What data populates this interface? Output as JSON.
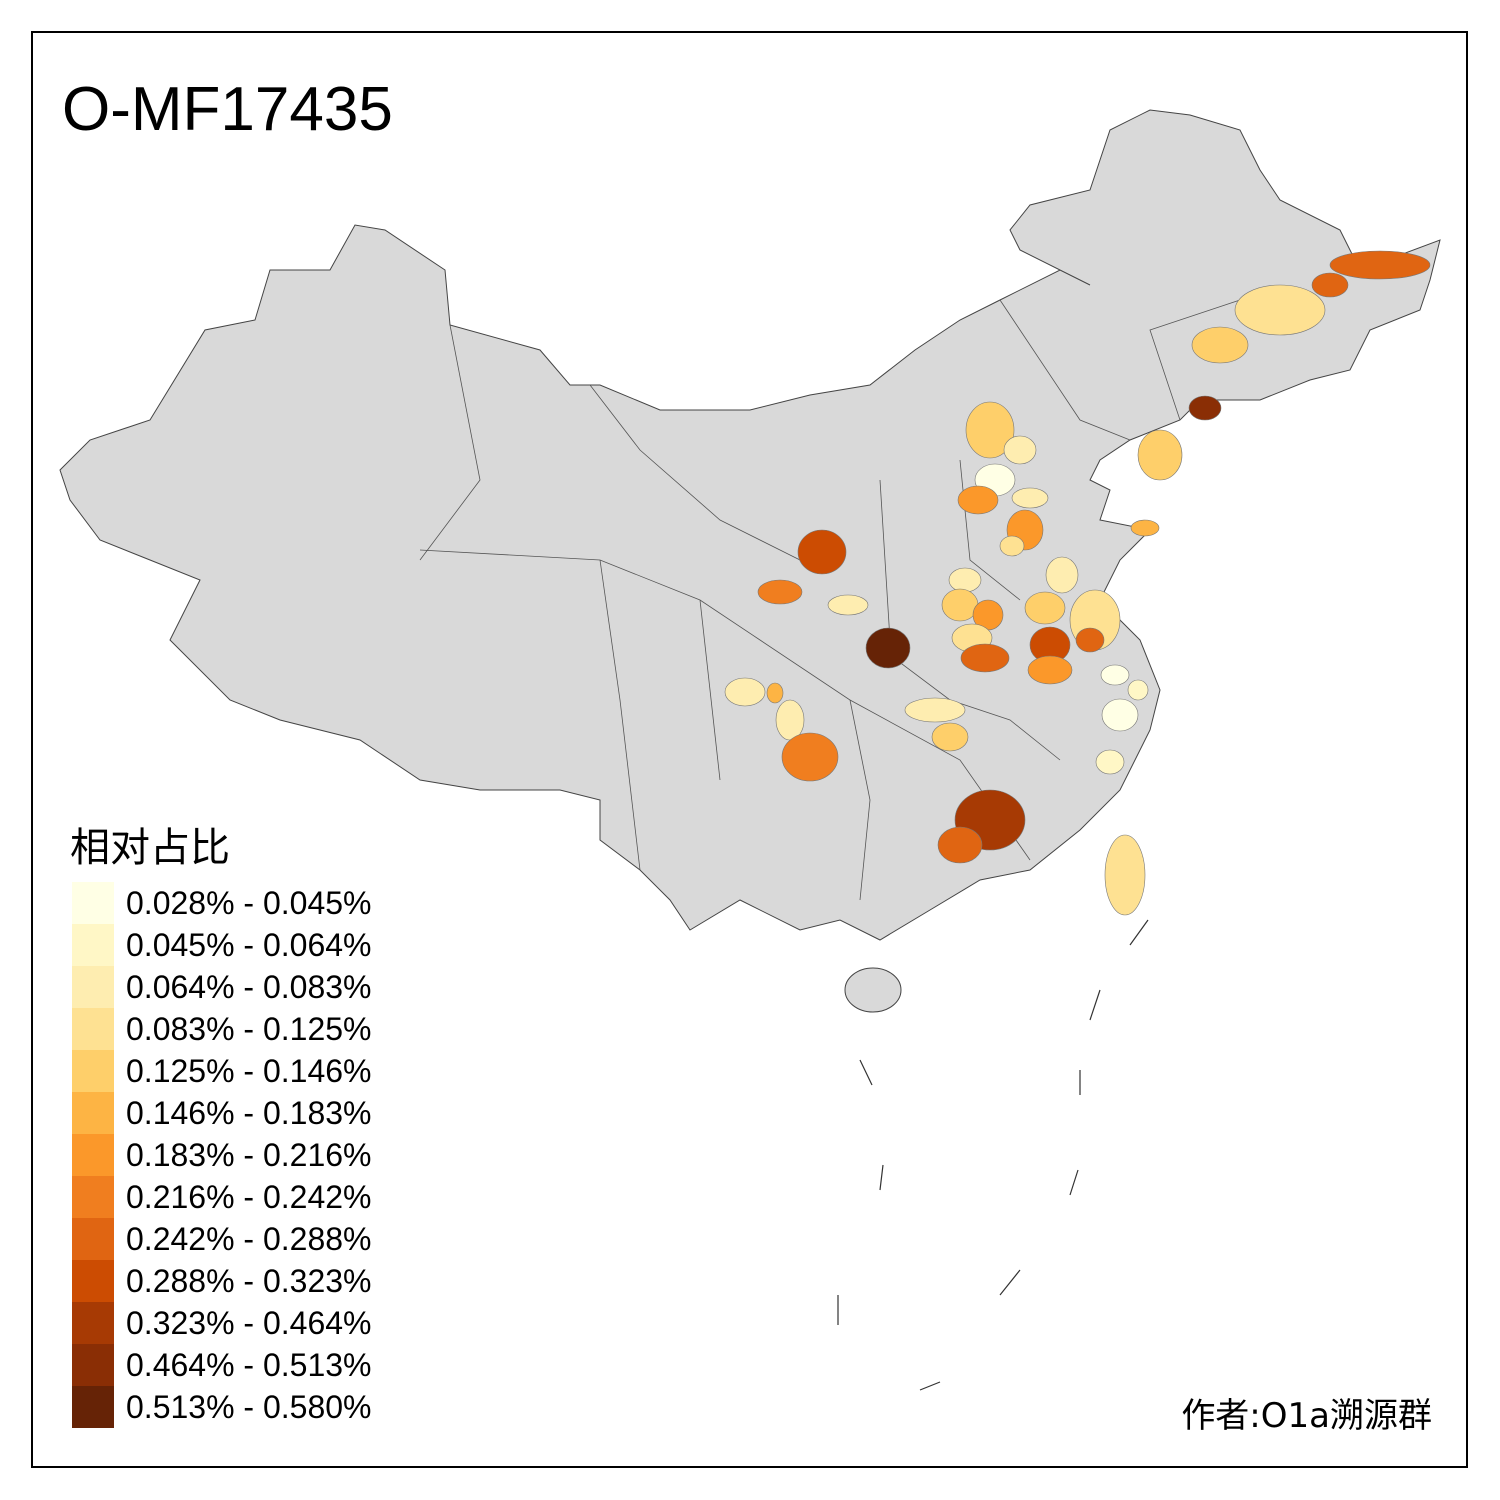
{
  "title": "O-MF17435",
  "legend": {
    "title": "相对占比",
    "items": [
      {
        "label": "0.028% - 0.045%",
        "color": "#FFFFE5"
      },
      {
        "label": "0.045% - 0.064%",
        "color": "#FFF7C6"
      },
      {
        "label": "0.064% - 0.083%",
        "color": "#FEEDB0"
      },
      {
        "label": "0.083% - 0.125%",
        "color": "#FEE192"
      },
      {
        "label": "0.125% - 0.146%",
        "color": "#FECF6A"
      },
      {
        "label": "0.146% - 0.183%",
        "color": "#FDB444"
      },
      {
        "label": "0.183% - 0.216%",
        "color": "#FB982A"
      },
      {
        "label": "0.216% - 0.242%",
        "color": "#F07E1F"
      },
      {
        "label": "0.242% - 0.288%",
        "color": "#E06512"
      },
      {
        "label": "0.288% - 0.323%",
        "color": "#CC4C02"
      },
      {
        "label": "0.323% - 0.464%",
        "color": "#A73A04"
      },
      {
        "label": "0.464% - 0.513%",
        "color": "#8A2E05"
      },
      {
        "label": "0.513% - 0.580%",
        "color": "#662306"
      }
    ]
  },
  "base_color": "#D9D9D9",
  "author": "作者:O1a溯源群"
}
